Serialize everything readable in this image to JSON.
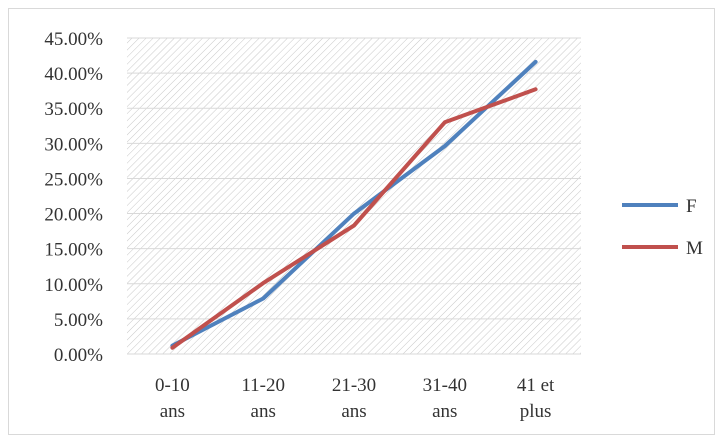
{
  "chart_data": {
    "type": "line",
    "title": "",
    "xlabel": "",
    "ylabel": "",
    "categories": [
      [
        "0-10",
        "ans"
      ],
      [
        "11-20",
        "ans"
      ],
      [
        "21-30",
        "ans"
      ],
      [
        "31-40",
        "ans"
      ],
      [
        "41 et",
        "plus"
      ]
    ],
    "yticks": [
      "0.00%",
      "5.00%",
      "10.00%",
      "15.00%",
      "20.00%",
      "25.00%",
      "30.00%",
      "35.00%",
      "40.00%",
      "45.00%"
    ],
    "ylim": [
      0,
      45
    ],
    "grid": true,
    "legend_position": "right",
    "series": [
      {
        "name": "F",
        "color": "#4f81bd",
        "values": [
          1.2,
          7.9,
          20.0,
          29.6,
          41.6
        ]
      },
      {
        "name": "M",
        "color": "#c0504d",
        "values": [
          0.9,
          10.1,
          18.3,
          33.0,
          37.7
        ]
      }
    ]
  }
}
